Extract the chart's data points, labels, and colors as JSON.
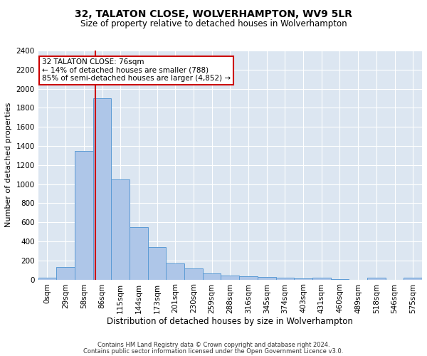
{
  "title": "32, TALATON CLOSE, WOLVERHAMPTON, WV9 5LR",
  "subtitle": "Size of property relative to detached houses in Wolverhampton",
  "xlabel": "Distribution of detached houses by size in Wolverhampton",
  "ylabel": "Number of detached properties",
  "footer1": "Contains HM Land Registry data © Crown copyright and database right 2024.",
  "footer2": "Contains public sector information licensed under the Open Government Licence v3.0.",
  "categories": [
    "0sqm",
    "29sqm",
    "58sqm",
    "86sqm",
    "115sqm",
    "144sqm",
    "173sqm",
    "201sqm",
    "230sqm",
    "259sqm",
    "288sqm",
    "316sqm",
    "345sqm",
    "374sqm",
    "403sqm",
    "431sqm",
    "460sqm",
    "489sqm",
    "518sqm",
    "546sqm",
    "575sqm"
  ],
  "values": [
    20,
    130,
    1350,
    1900,
    1050,
    550,
    340,
    165,
    115,
    65,
    40,
    30,
    25,
    20,
    15,
    20,
    5,
    0,
    20,
    0,
    20
  ],
  "bar_color": "#aec6e8",
  "bar_edge_color": "#5b9bd5",
  "bg_color": "#dce6f1",
  "grid_color": "#ffffff",
  "vline_x": 2.64,
  "vline_color": "#cc0000",
  "annotation_line1": "32 TALATON CLOSE: 76sqm",
  "annotation_line2": "← 14% of detached houses are smaller (788)",
  "annotation_line3": "85% of semi-detached houses are larger (4,852) →",
  "annotation_box_color": "#cc0000",
  "ylim": [
    0,
    2400
  ],
  "yticks": [
    0,
    200,
    400,
    600,
    800,
    1000,
    1200,
    1400,
    1600,
    1800,
    2000,
    2200,
    2400
  ],
  "title_fontsize": 10,
  "subtitle_fontsize": 8.5,
  "xlabel_fontsize": 8.5,
  "ylabel_fontsize": 8,
  "tick_fontsize": 7.5,
  "annot_fontsize": 7.5,
  "footer_fontsize": 6
}
